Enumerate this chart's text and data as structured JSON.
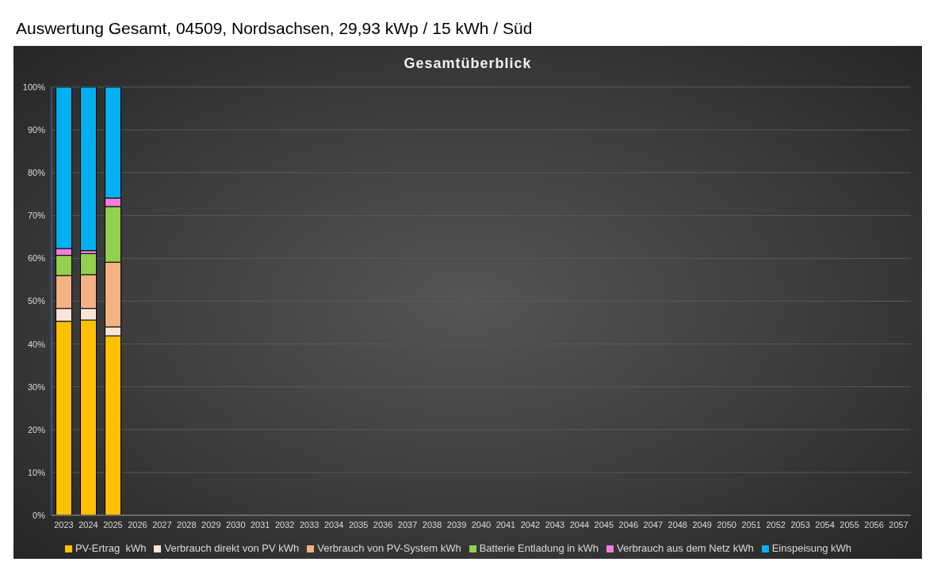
{
  "chart_data": {
    "type": "bar",
    "title": "Auswertung Gesamt, 04509, Nordsachsen, 29,93 kWp / 15 kWh / Süd",
    "subtitle": "Gesamtüberblick",
    "categories": [
      "2023",
      "2024",
      "2025",
      "2026",
      "2027",
      "2028",
      "2029",
      "2030",
      "2031",
      "2032",
      "2033",
      "2034",
      "2035",
      "2036",
      "2037",
      "2038",
      "2039",
      "2040",
      "2041",
      "2042",
      "2043",
      "2044",
      "2045",
      "2046",
      "2047",
      "2048",
      "2049",
      "2050",
      "2051",
      "2052",
      "2053",
      "2054",
      "2055",
      "2056",
      "2057"
    ],
    "stacked": true,
    "series": [
      {
        "name": "PV-Ertrag  kWh",
        "color": "#ffc000",
        "values": [
          45.3,
          45.6,
          41.9,
          null,
          null,
          null,
          null,
          null,
          null,
          null,
          null,
          null,
          null,
          null,
          null,
          null,
          null,
          null,
          null,
          null,
          null,
          null,
          null,
          null,
          null,
          null,
          null,
          null,
          null,
          null,
          null,
          null,
          null,
          null,
          null
        ]
      },
      {
        "name": "Verbrauch direkt von PV kWh",
        "color": "#fbe5d6",
        "values": [
          3.0,
          2.7,
          2.1,
          null,
          null,
          null,
          null,
          null,
          null,
          null,
          null,
          null,
          null,
          null,
          null,
          null,
          null,
          null,
          null,
          null,
          null,
          null,
          null,
          null,
          null,
          null,
          null,
          null,
          null,
          null,
          null,
          null,
          null,
          null,
          null
        ]
      },
      {
        "name": "Verbrauch von PV-System kWh",
        "color": "#f4b183",
        "values": [
          7.7,
          7.9,
          15.1,
          null,
          null,
          null,
          null,
          null,
          null,
          null,
          null,
          null,
          null,
          null,
          null,
          null,
          null,
          null,
          null,
          null,
          null,
          null,
          null,
          null,
          null,
          null,
          null,
          null,
          null,
          null,
          null,
          null,
          null,
          null,
          null
        ]
      },
      {
        "name": "Batterie Entladung in kWh",
        "color": "#92d050",
        "values": [
          4.7,
          4.9,
          13.0,
          null,
          null,
          null,
          null,
          null,
          null,
          null,
          null,
          null,
          null,
          null,
          null,
          null,
          null,
          null,
          null,
          null,
          null,
          null,
          null,
          null,
          null,
          null,
          null,
          null,
          null,
          null,
          null,
          null,
          null,
          null,
          null
        ]
      },
      {
        "name": "Verbrauch aus dem Netz kWh",
        "color": "#f07ee0",
        "values": [
          1.6,
          0.7,
          2.0,
          null,
          null,
          null,
          null,
          null,
          null,
          null,
          null,
          null,
          null,
          null,
          null,
          null,
          null,
          null,
          null,
          null,
          null,
          null,
          null,
          null,
          null,
          null,
          null,
          null,
          null,
          null,
          null,
          null,
          null,
          null,
          null
        ]
      },
      {
        "name": "Einspeisung kWh",
        "color": "#00b0f0",
        "values": [
          37.7,
          38.2,
          25.9,
          null,
          null,
          null,
          null,
          null,
          null,
          null,
          null,
          null,
          null,
          null,
          null,
          null,
          null,
          null,
          null,
          null,
          null,
          null,
          null,
          null,
          null,
          null,
          null,
          null,
          null,
          null,
          null,
          null,
          null,
          null,
          null
        ]
      }
    ],
    "ylim": [
      0,
      100
    ],
    "yticks": [
      {
        "value": 0,
        "label": "0%"
      },
      {
        "value": 10,
        "label": "10%"
      },
      {
        "value": 20,
        "label": "20%"
      },
      {
        "value": 30,
        "label": "30%"
      },
      {
        "value": 40,
        "label": "40%"
      },
      {
        "value": 50,
        "label": "50%"
      },
      {
        "value": 60,
        "label": "60%"
      },
      {
        "value": 70,
        "label": "70%"
      },
      {
        "value": 80,
        "label": "80%"
      },
      {
        "value": 90,
        "label": "90%"
      },
      {
        "value": 100,
        "label": "100%"
      }
    ],
    "grid": "y",
    "legend": "bottom"
  }
}
